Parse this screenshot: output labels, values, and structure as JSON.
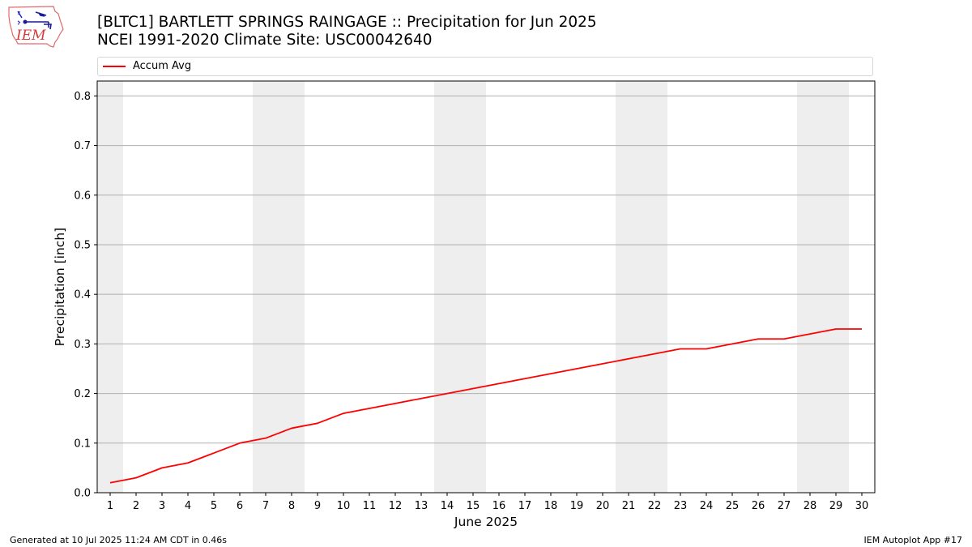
{
  "logo": {
    "text": "IEM",
    "icon": "iowa-weather-station-logo-icon"
  },
  "title": {
    "line1": "[BLTC1] BARTLETT SPRINGS RAINGAGE :: Precipitation for Jun 2025",
    "line2": "NCEI 1991-2020 Climate Site: USC00042640"
  },
  "legend": {
    "items": [
      {
        "label": "Accum Avg",
        "color": "#ff0000"
      }
    ]
  },
  "footer": {
    "left": "Generated at 10 Jul 2025 11:24 AM CDT in 0.46s",
    "right": "IEM Autoplot App #17"
  },
  "colors": {
    "line": "#ff0000",
    "weekend": "#eeeeee",
    "grid": "#b0b0b0"
  },
  "chart_data": {
    "type": "line",
    "title": "[BLTC1] BARTLETT SPRINGS RAINGAGE :: Precipitation for Jun 2025",
    "subtitle": "NCEI 1991-2020 Climate Site: USC00042640",
    "xlabel": "June 2025",
    "ylabel": "Precipitation [inch]",
    "xlim": [
      0.5,
      30.5
    ],
    "ylim": [
      0,
      0.83
    ],
    "x": [
      1,
      2,
      3,
      4,
      5,
      6,
      7,
      8,
      9,
      10,
      11,
      12,
      13,
      14,
      15,
      16,
      17,
      18,
      19,
      20,
      21,
      22,
      23,
      24,
      25,
      26,
      27,
      28,
      29,
      30
    ],
    "yticks": [
      0.0,
      0.1,
      0.2,
      0.3,
      0.4,
      0.5,
      0.6,
      0.7,
      0.8
    ],
    "ytick_labels": [
      "0.0",
      "0.1",
      "0.2",
      "0.3",
      "0.4",
      "0.5",
      "0.6",
      "0.7",
      "0.8"
    ],
    "grid": "horizontal",
    "legend_position": "top",
    "shaded_ranges": [
      [
        0.5,
        1.5
      ],
      [
        6.5,
        8.5
      ],
      [
        13.5,
        15.5
      ],
      [
        20.5,
        22.5
      ],
      [
        27.5,
        29.5
      ]
    ],
    "series": [
      {
        "name": "Accum Avg",
        "color": "#ff0000",
        "values": [
          0.02,
          0.03,
          0.05,
          0.06,
          0.08,
          0.1,
          0.11,
          0.13,
          0.14,
          0.16,
          0.17,
          0.18,
          0.19,
          0.2,
          0.21,
          0.22,
          0.23,
          0.24,
          0.25,
          0.26,
          0.27,
          0.28,
          0.29,
          0.29,
          0.3,
          0.31,
          0.31,
          0.32,
          0.33,
          0.33
        ]
      }
    ]
  }
}
